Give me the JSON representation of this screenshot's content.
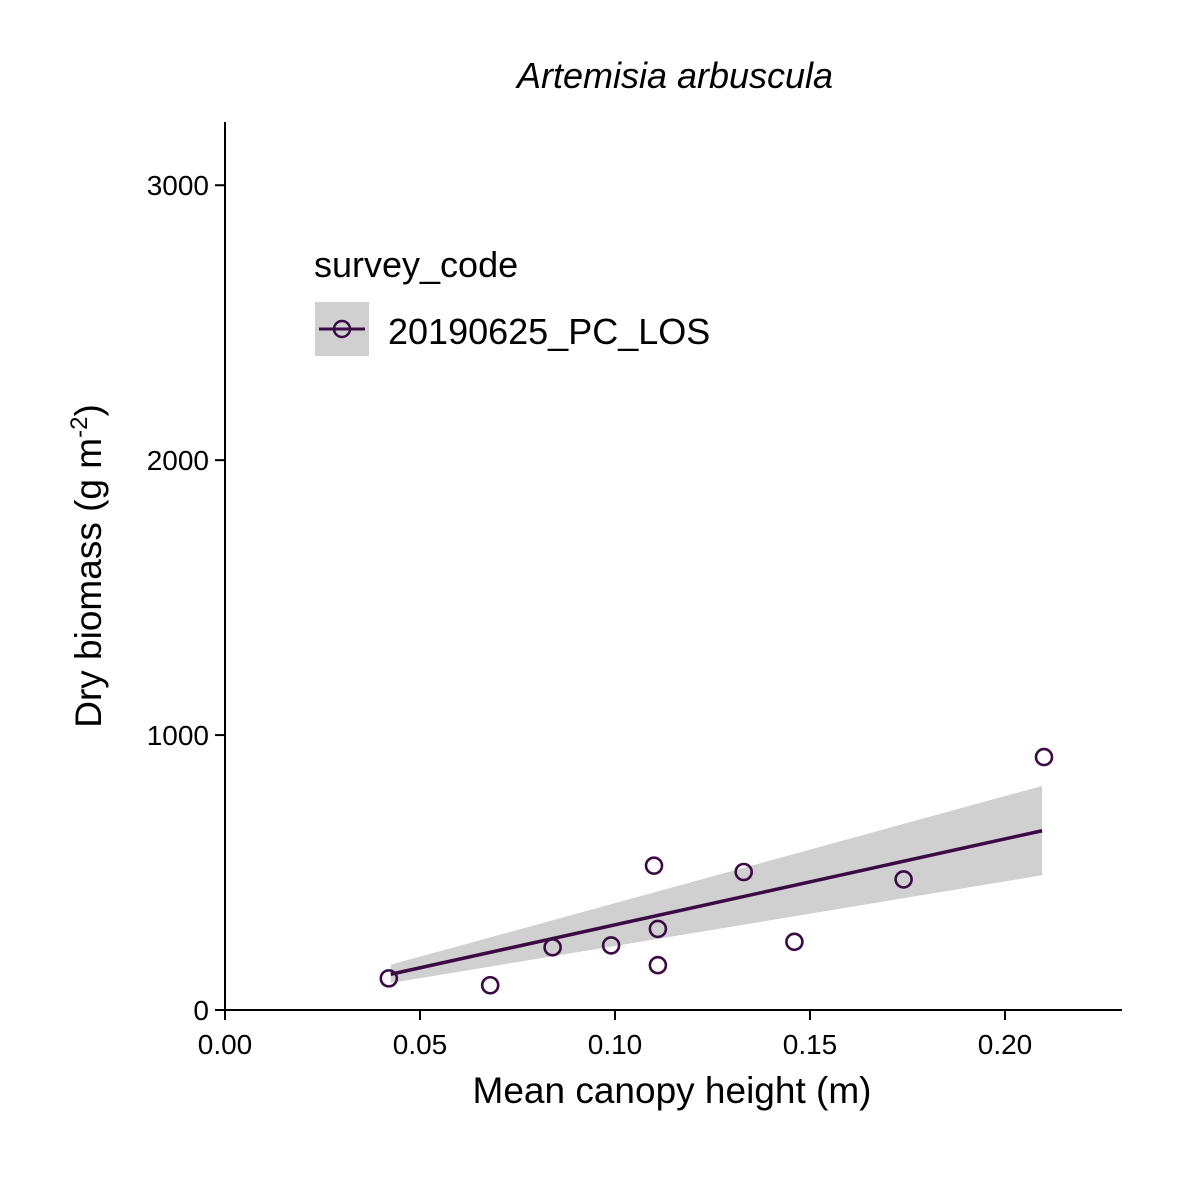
{
  "chart_data": {
    "type": "scatter",
    "title": "Artemisia arbuscula",
    "xlabel": "Mean canopy height (m)",
    "ylabel": {
      "main": "Dry biomass (g m",
      "superscript": "-2",
      "close": ")"
    },
    "xlim": [
      0,
      0.23
    ],
    "ylim": [
      0,
      3230
    ],
    "x_ticks": [
      0.0,
      0.05,
      0.1,
      0.15,
      0.2
    ],
    "x_tick_labels": [
      "0.00",
      "0.05",
      "0.10",
      "0.15",
      "0.20"
    ],
    "y_ticks": [
      0,
      1000,
      2000,
      3000
    ],
    "y_tick_labels": [
      "0",
      "1000",
      "2000",
      "3000"
    ],
    "grid": false,
    "legend": {
      "title": "survey_code",
      "placement": "top-left",
      "entries": [
        "20190625_PC_LOS"
      ]
    },
    "series": [
      {
        "name": "20190625_PC_LOS",
        "color": "#3b0a45",
        "points": [
          {
            "x": 0.042,
            "y": 115
          },
          {
            "x": 0.068,
            "y": 90
          },
          {
            "x": 0.084,
            "y": 228
          },
          {
            "x": 0.099,
            "y": 235
          },
          {
            "x": 0.11,
            "y": 525
          },
          {
            "x": 0.111,
            "y": 295
          },
          {
            "x": 0.111,
            "y": 163
          },
          {
            "x": 0.133,
            "y": 502
          },
          {
            "x": 0.146,
            "y": 248
          },
          {
            "x": 0.174,
            "y": 475
          },
          {
            "x": 0.21,
            "y": 920
          }
        ]
      }
    ],
    "fit": {
      "x": [
        0.0425,
        0.2095
      ],
      "y": [
        130,
        652
      ],
      "ci_lower": [
        98,
        490
      ],
      "ci_upper": [
        165,
        815
      ],
      "line_color": "#3b0a45",
      "band_color": "#d0d0d0"
    }
  }
}
